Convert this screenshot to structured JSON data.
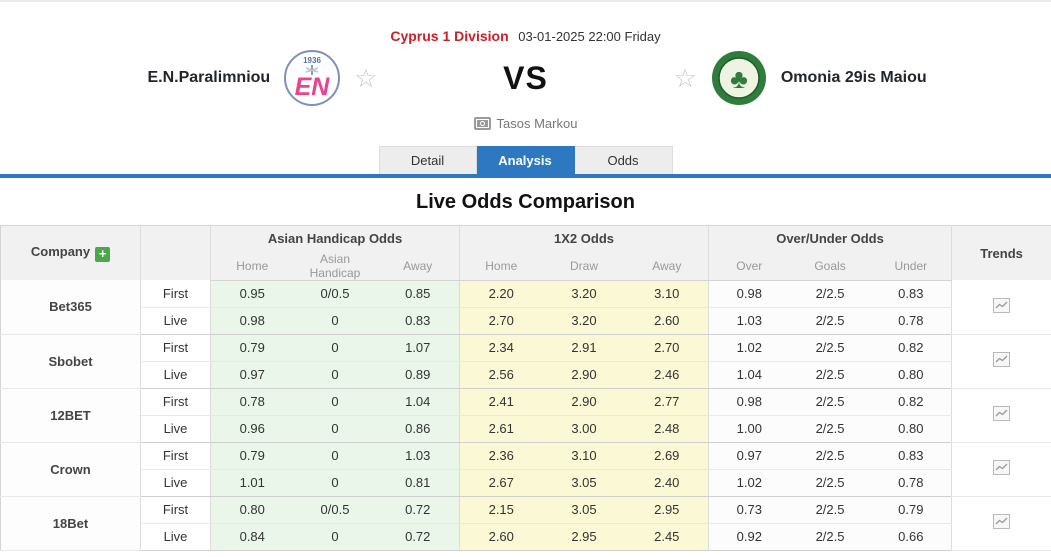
{
  "header": {
    "league": "Cyprus 1 Division",
    "datetime": "03-01-2025 22:00 Friday",
    "home_team": "E.N.Paralimniou",
    "away_team": "Omonia 29is Maiou",
    "vs": "VS",
    "venue": "Tasos Markou",
    "home_logo": {
      "year": "1936",
      "monogram": "EN"
    },
    "league_color": "#cc2027",
    "accent_blue": "#2e78c2"
  },
  "tabs": [
    {
      "label": "Detail",
      "active": false
    },
    {
      "label": "Analysis",
      "active": true
    },
    {
      "label": "Odds",
      "active": false
    }
  ],
  "section_title": "Live Odds Comparison",
  "odds_table": {
    "company_header": "Company",
    "add_button": "+",
    "groups": [
      {
        "label": "Asian Handicap Odds",
        "columns": [
          "Home",
          "Asian Handicap",
          "Away"
        ]
      },
      {
        "label": "1X2 Odds",
        "columns": [
          "Home",
          "Draw",
          "Away"
        ]
      },
      {
        "label": "Over/Under Odds",
        "columns": [
          "Over",
          "Goals",
          "Under"
        ]
      }
    ],
    "trends_header": "Trends",
    "row_types": [
      "First",
      "Live"
    ],
    "cell_colors": {
      "asian_handicap": "#e9f6e9",
      "x12": "#fbf8d5",
      "over_under": "#fcfcfc"
    },
    "companies": [
      {
        "name": "Bet365",
        "first": {
          "ah": [
            "0.95",
            "0/0.5",
            "0.85"
          ],
          "x12": [
            "2.20",
            "3.20",
            "3.10"
          ],
          "ou": [
            "0.98",
            "2/2.5",
            "0.83"
          ]
        },
        "live": {
          "ah": [
            "0.98",
            "0",
            "0.83"
          ],
          "x12": [
            "2.70",
            "3.20",
            "2.60"
          ],
          "ou": [
            "1.03",
            "2/2.5",
            "0.78"
          ]
        }
      },
      {
        "name": "Sbobet",
        "first": {
          "ah": [
            "0.79",
            "0",
            "1.07"
          ],
          "x12": [
            "2.34",
            "2.91",
            "2.70"
          ],
          "ou": [
            "1.02",
            "2/2.5",
            "0.82"
          ]
        },
        "live": {
          "ah": [
            "0.97",
            "0",
            "0.89"
          ],
          "x12": [
            "2.56",
            "2.90",
            "2.46"
          ],
          "ou": [
            "1.04",
            "2/2.5",
            "0.80"
          ]
        }
      },
      {
        "name": "12BET",
        "first": {
          "ah": [
            "0.78",
            "0",
            "1.04"
          ],
          "x12": [
            "2.41",
            "2.90",
            "2.77"
          ],
          "ou": [
            "0.98",
            "2/2.5",
            "0.82"
          ]
        },
        "live": {
          "ah": [
            "0.96",
            "0",
            "0.86"
          ],
          "x12": [
            "2.61",
            "3.00",
            "2.48"
          ],
          "ou": [
            "1.00",
            "2/2.5",
            "0.80"
          ]
        }
      },
      {
        "name": "Crown",
        "first": {
          "ah": [
            "0.79",
            "0",
            "1.03"
          ],
          "x12": [
            "2.36",
            "3.10",
            "2.69"
          ],
          "ou": [
            "0.97",
            "2/2.5",
            "0.83"
          ]
        },
        "live": {
          "ah": [
            "1.01",
            "0",
            "0.81"
          ],
          "x12": [
            "2.67",
            "3.05",
            "2.40"
          ],
          "ou": [
            "1.02",
            "2/2.5",
            "0.78"
          ]
        }
      },
      {
        "name": "18Bet",
        "first": {
          "ah": [
            "0.80",
            "0/0.5",
            "0.72"
          ],
          "x12": [
            "2.15",
            "3.05",
            "2.95"
          ],
          "ou": [
            "0.73",
            "2/2.5",
            "0.79"
          ]
        },
        "live": {
          "ah": [
            "0.84",
            "0",
            "0.72"
          ],
          "x12": [
            "2.60",
            "2.95",
            "2.45"
          ],
          "ou": [
            "0.92",
            "2/2.5",
            "0.66"
          ]
        }
      }
    ]
  }
}
